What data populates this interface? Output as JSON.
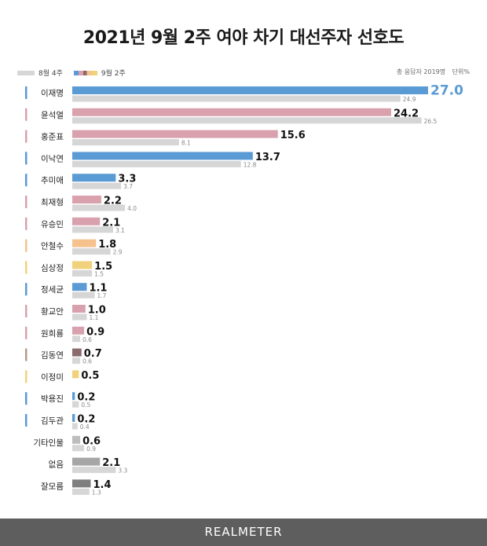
{
  "header": {
    "title": "2021년 9월 2주 여야 차기 대선주자 선호도",
    "legend_prev": "8월 4주",
    "legend_cur": "9월 2주",
    "sample": "총 응답자 2019명",
    "unit": "단위%"
  },
  "footer": {
    "brand": "REALMETER"
  },
  "chart_data": {
    "type": "bar",
    "orientation": "horizontal",
    "title": "2021년 9월 2주 여야 차기 대선주자 선호도",
    "categories": [
      "이재명",
      "윤석열",
      "홍준표",
      "이낙연",
      "추미애",
      "최재형",
      "유승민",
      "안철수",
      "심상정",
      "정세균",
      "황교안",
      "원희룡",
      "김동연",
      "이정미",
      "박용진",
      "김두관",
      "기타인물",
      "없음",
      "잘모름"
    ],
    "series": [
      {
        "name": "9월 2주",
        "values": [
          27.0,
          24.2,
          15.6,
          13.7,
          3.3,
          2.2,
          2.1,
          1.8,
          1.5,
          1.1,
          1.0,
          0.9,
          0.7,
          0.5,
          0.2,
          0.2,
          0.6,
          2.1,
          1.4
        ]
      },
      {
        "name": "8월 4주",
        "values": [
          24.9,
          26.5,
          8.1,
          12.8,
          3.7,
          4.0,
          3.1,
          2.9,
          1.5,
          1.7,
          1.1,
          0.6,
          0.6,
          null,
          0.5,
          0.4,
          0.9,
          3.3,
          1.3
        ]
      }
    ],
    "colors_current": [
      "#5b9bd5",
      "#d8a1ad",
      "#d8a1ad",
      "#5b9bd5",
      "#5b9bd5",
      "#d8a1ad",
      "#d8a1ad",
      "#f5c18c",
      "#f0d27c",
      "#5b9bd5",
      "#d8a1ad",
      "#d8a1ad",
      "#8b6b6b",
      "#f0d27c",
      "#5b9bd5",
      "#5b9bd5",
      "#bdbdbd",
      "#a6a6a6",
      "#7f7f7f"
    ],
    "marker_colors": [
      "#5b9bd5",
      "#d8a1ad",
      "#d8a1ad",
      "#5b9bd5",
      "#5b9bd5",
      "#d8a1ad",
      "#d8a1ad",
      "#f5c18c",
      "#f0d27c",
      "#5b9bd5",
      "#d8a1ad",
      "#d8a1ad",
      "#b89a8a",
      "#f0d27c",
      "#5b9bd5",
      "#5b9bd5",
      null,
      null,
      null
    ],
    "prev_color": "#d6d6d6",
    "highlight_color": "#5b9bd5",
    "xlim": [
      0,
      27.0
    ],
    "grid": false
  }
}
